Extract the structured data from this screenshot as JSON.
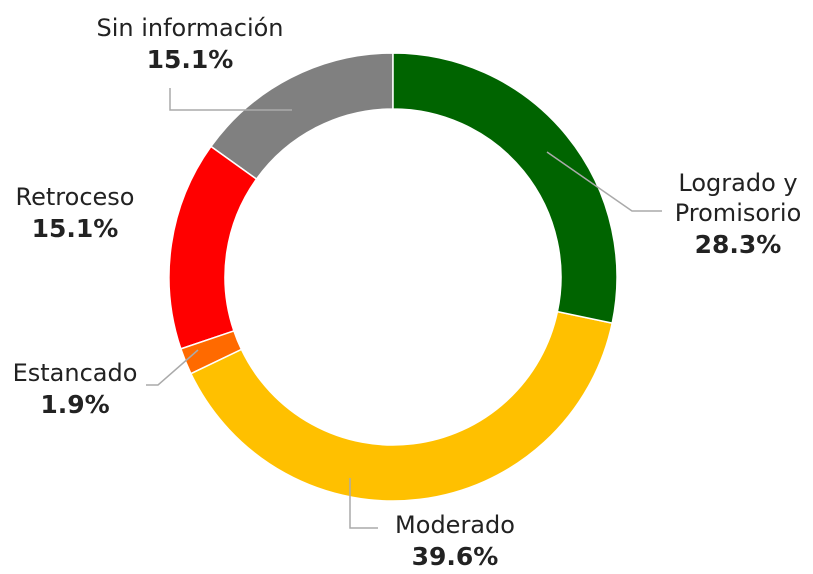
{
  "chart_data": {
    "type": "pie",
    "categories": [
      "Logrado y Promisorio",
      "Moderado",
      "Estancado",
      "Retroceso",
      "Sin información"
    ],
    "values": [
      28.3,
      39.6,
      1.9,
      15.1,
      15.1
    ],
    "value_labels": [
      "28.3%",
      "39.6%",
      "1.9%",
      "15.1%",
      "15.1%"
    ],
    "colors": [
      "#006400",
      "#ffc000",
      "#ff6a00",
      "#ff0000",
      "#808080"
    ]
  }
}
